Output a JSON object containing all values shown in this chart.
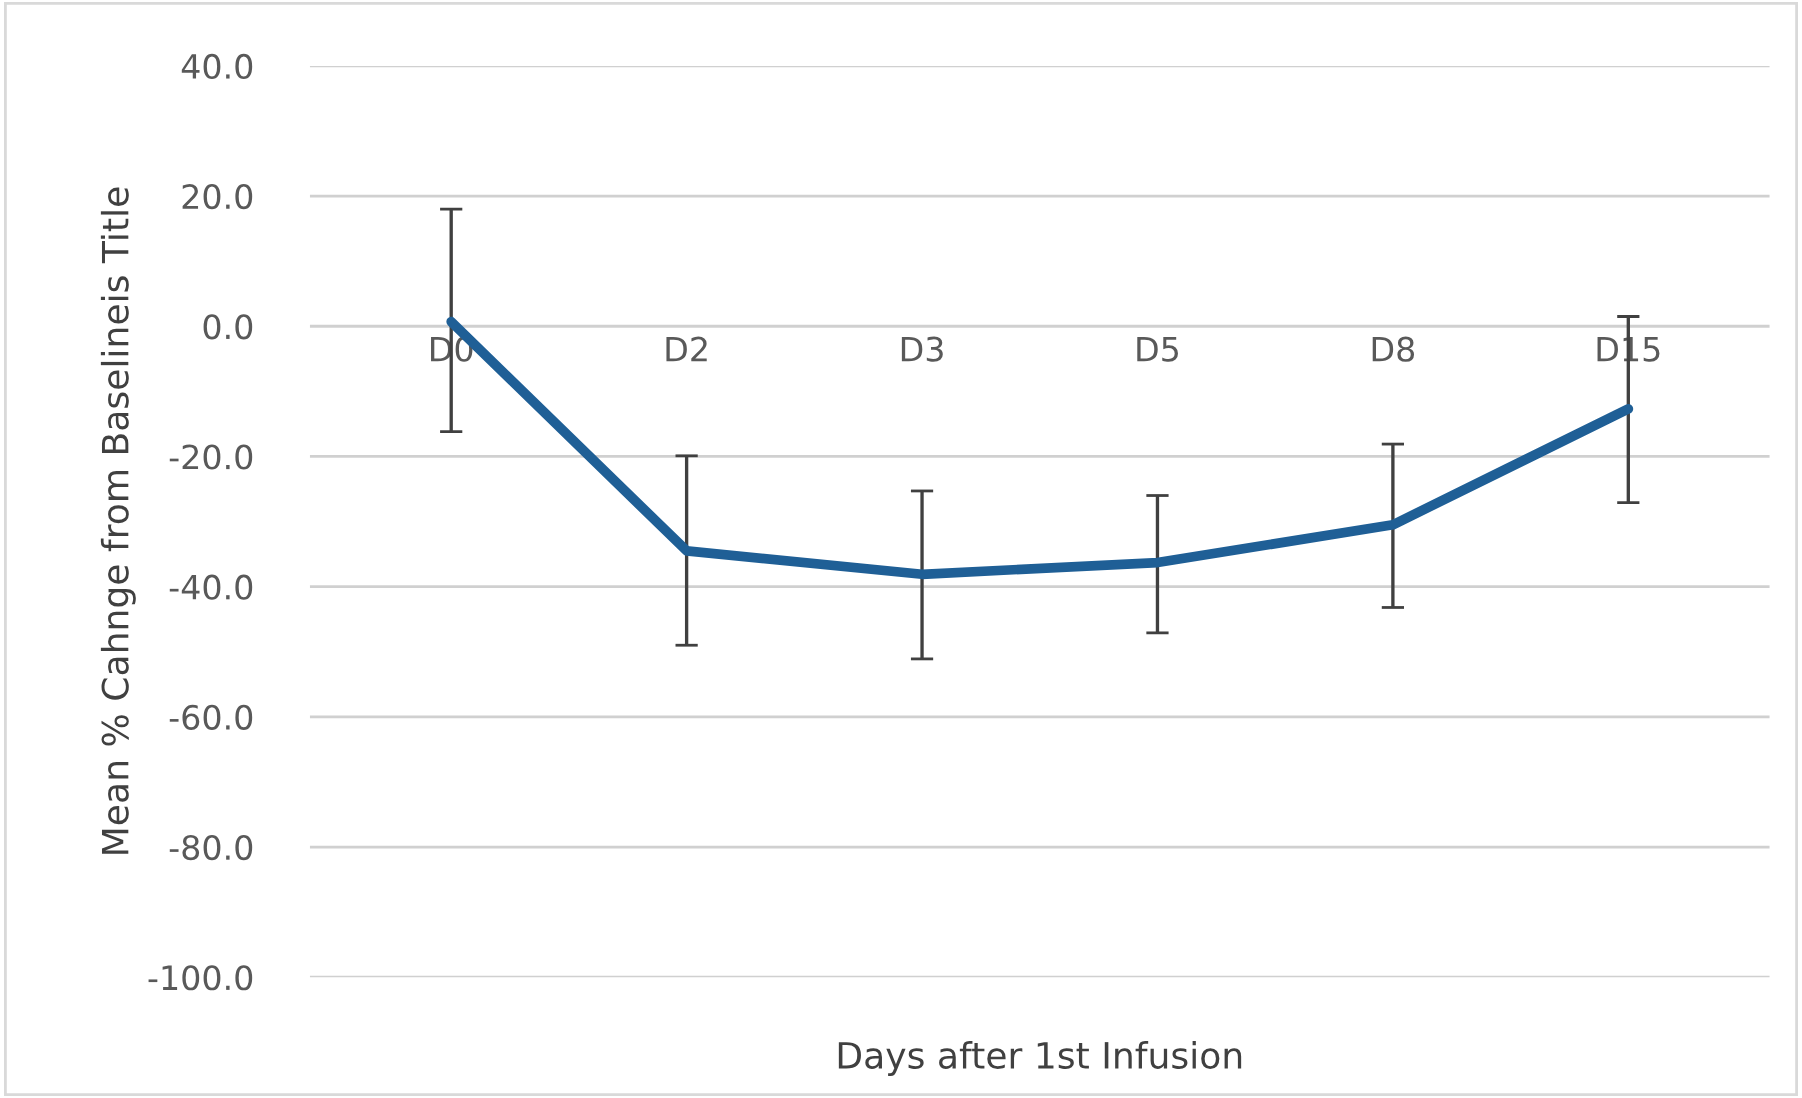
{
  "chart_data": {
    "type": "line",
    "xlabel": "Days after 1st Infusion",
    "ylabel": "Mean % Cahnge from Baselineis Title",
    "categories": [
      "D0",
      "D2",
      "D3",
      "D5",
      "D8",
      "D15"
    ],
    "series": [
      {
        "color": "#1f5f96",
        "values": [
          0.7,
          -34.5,
          -38.1,
          -36.3,
          -30.5,
          -12.7
        ],
        "errors": [
          [
            -16.2,
            18.0
          ],
          [
            -49.0,
            -19.9
          ],
          [
            -51.1,
            -25.3
          ],
          [
            -47.1,
            -26.0
          ],
          [
            -43.2,
            -18.1
          ],
          [
            -27.1,
            1.5
          ]
        ]
      }
    ],
    "ylim": [
      -100,
      40
    ],
    "yticks": [
      {
        "value": -100,
        "label": "-100.0"
      },
      {
        "value": -80,
        "label": "-80.0"
      },
      {
        "value": -60,
        "label": "-60.0"
      },
      {
        "value": -40,
        "label": "-40.0"
      },
      {
        "value": -20,
        "label": "-20.0"
      },
      {
        "value": 0,
        "label": "0.0"
      },
      {
        "value": 20,
        "label": "20.0"
      },
      {
        "value": 40,
        "label": "40.0"
      }
    ],
    "grid": "y",
    "marker": "none",
    "line_style": "solid"
  }
}
